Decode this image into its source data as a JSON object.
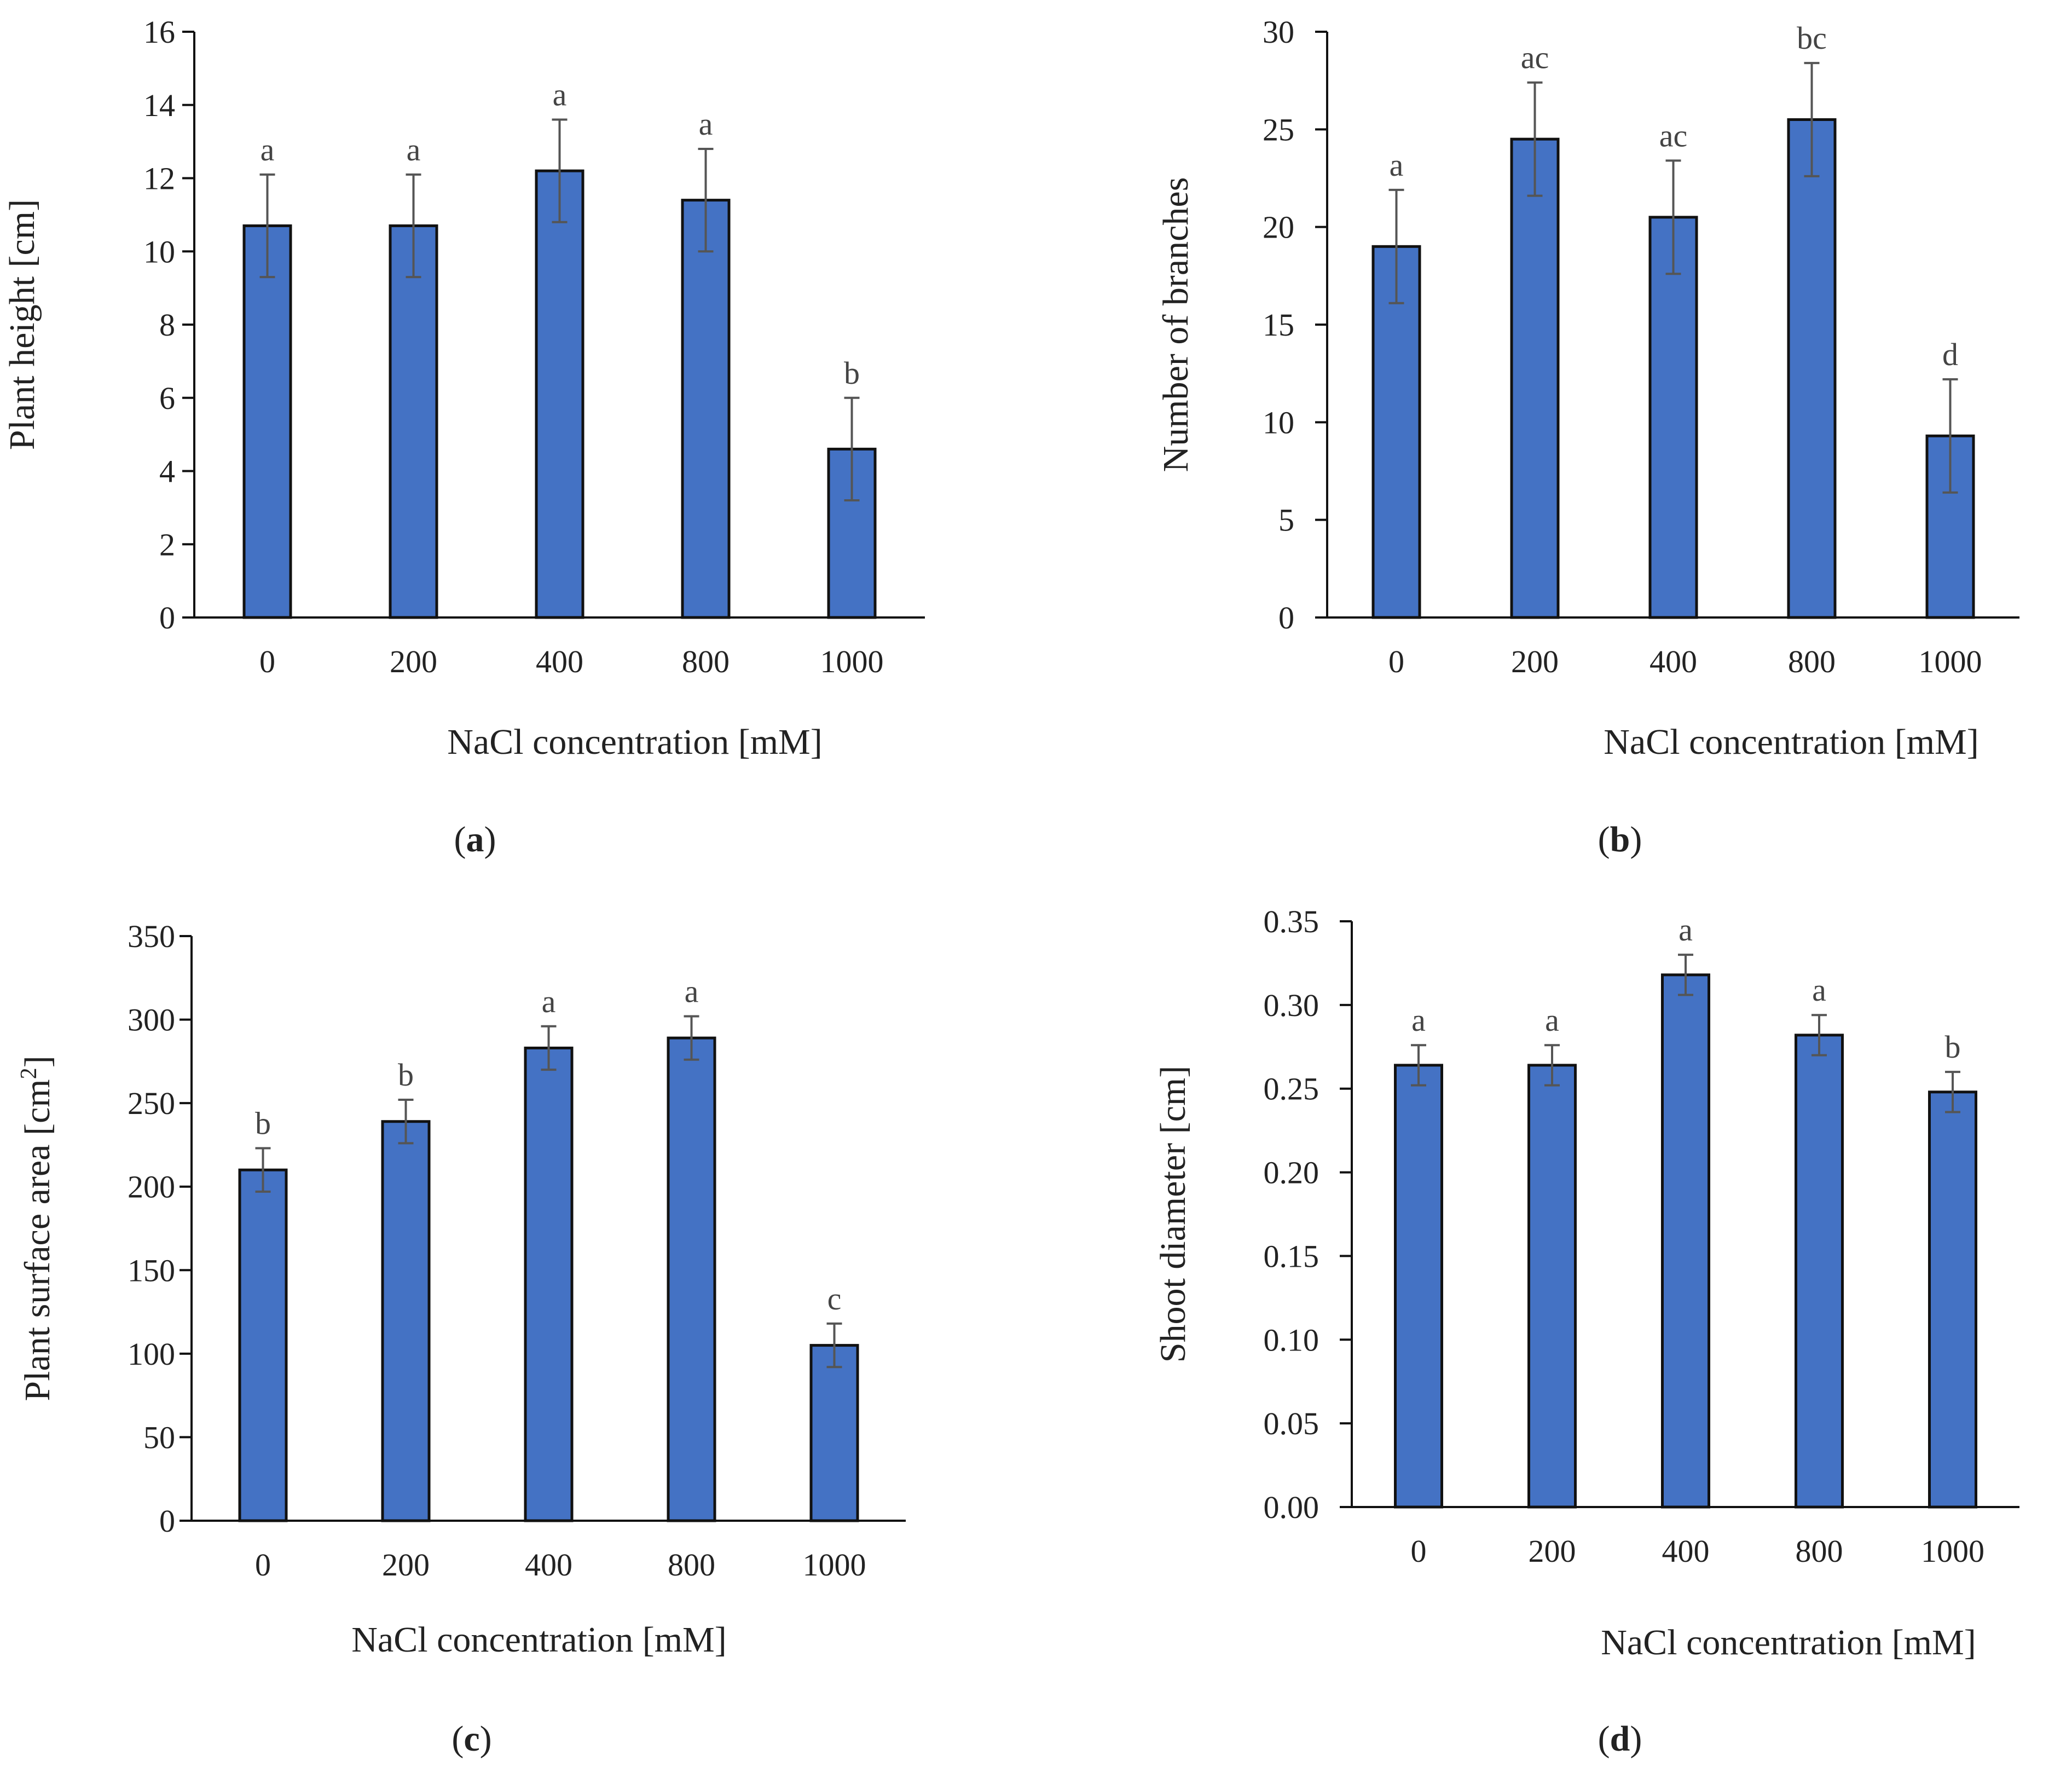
{
  "colors": {
    "bar_fill": "#4472C4",
    "bar_stroke": "#111111",
    "axis": "#111111",
    "error_bar": "#555555",
    "text": "#222222"
  },
  "chart_data": [
    {
      "type": "bar",
      "panel": "a",
      "panel_label": {
        "open": "(",
        "letter": "a",
        "close": ")"
      },
      "title": "",
      "xlabel": "NaCl concentration [mM]",
      "ylabel": "Plant height [cm]",
      "categories": [
        "0",
        "200",
        "400",
        "800",
        "1000"
      ],
      "values": [
        10.7,
        10.7,
        12.2,
        11.4,
        4.6
      ],
      "errors": [
        1.4,
        1.4,
        1.4,
        1.4,
        1.4
      ],
      "significance": [
        "a",
        "a",
        "a",
        "a",
        "b"
      ],
      "ylim": [
        0,
        16
      ],
      "yticks": [
        "0",
        "2",
        "4",
        "6",
        "8",
        "10",
        "12",
        "14",
        "16"
      ]
    },
    {
      "type": "bar",
      "panel": "b",
      "panel_label": {
        "open": "(",
        "letter": "b",
        "close": ")"
      },
      "title": "",
      "xlabel": "NaCl concentration [mM]",
      "ylabel": "Number of branches",
      "categories": [
        "0",
        "200",
        "400",
        "800",
        "1000"
      ],
      "values": [
        19.0,
        24.5,
        20.5,
        25.5,
        9.3
      ],
      "errors": [
        2.9,
        2.9,
        2.9,
        2.9,
        2.9
      ],
      "significance": [
        "a",
        "ac",
        "ac",
        "bc",
        "d"
      ],
      "ylim": [
        0,
        30
      ],
      "yticks": [
        "0",
        "5",
        "10",
        "15",
        "20",
        "25",
        "30"
      ]
    },
    {
      "type": "bar",
      "panel": "c",
      "panel_label": {
        "open": "(",
        "letter": "c",
        "close": ")"
      },
      "title": "",
      "xlabel": "NaCl concentration [mM]",
      "ylabel_main": "Plant surface area [cm",
      "ylabel_sup": "2",
      "ylabel_end": "]",
      "categories": [
        "0",
        "200",
        "400",
        "800",
        "1000"
      ],
      "values": [
        210,
        239,
        283,
        289,
        105
      ],
      "errors": [
        13,
        13,
        13,
        13,
        13
      ],
      "significance": [
        "b",
        "b",
        "a",
        "a",
        "c"
      ],
      "ylim": [
        0,
        350
      ],
      "yticks": [
        "0",
        "50",
        "100",
        "150",
        "200",
        "250",
        "300",
        "350"
      ]
    },
    {
      "type": "bar",
      "panel": "d",
      "panel_label": {
        "open": "(",
        "letter": "d",
        "close": ")"
      },
      "title": "",
      "xlabel": "NaCl concentration [mM]",
      "ylabel": "Shoot diameter [cm]",
      "categories": [
        "0",
        "200",
        "400",
        "800",
        "1000"
      ],
      "values": [
        0.264,
        0.264,
        0.318,
        0.282,
        0.248
      ],
      "errors": [
        0.012,
        0.012,
        0.012,
        0.012,
        0.012
      ],
      "significance": [
        "a",
        "a",
        "a",
        "a",
        "b"
      ],
      "ylim": [
        0,
        0.35
      ],
      "yticks": [
        "0.00",
        "0.05",
        "0.10",
        "0.15",
        "0.20",
        "0.25",
        "0.30",
        "0.35"
      ]
    }
  ]
}
